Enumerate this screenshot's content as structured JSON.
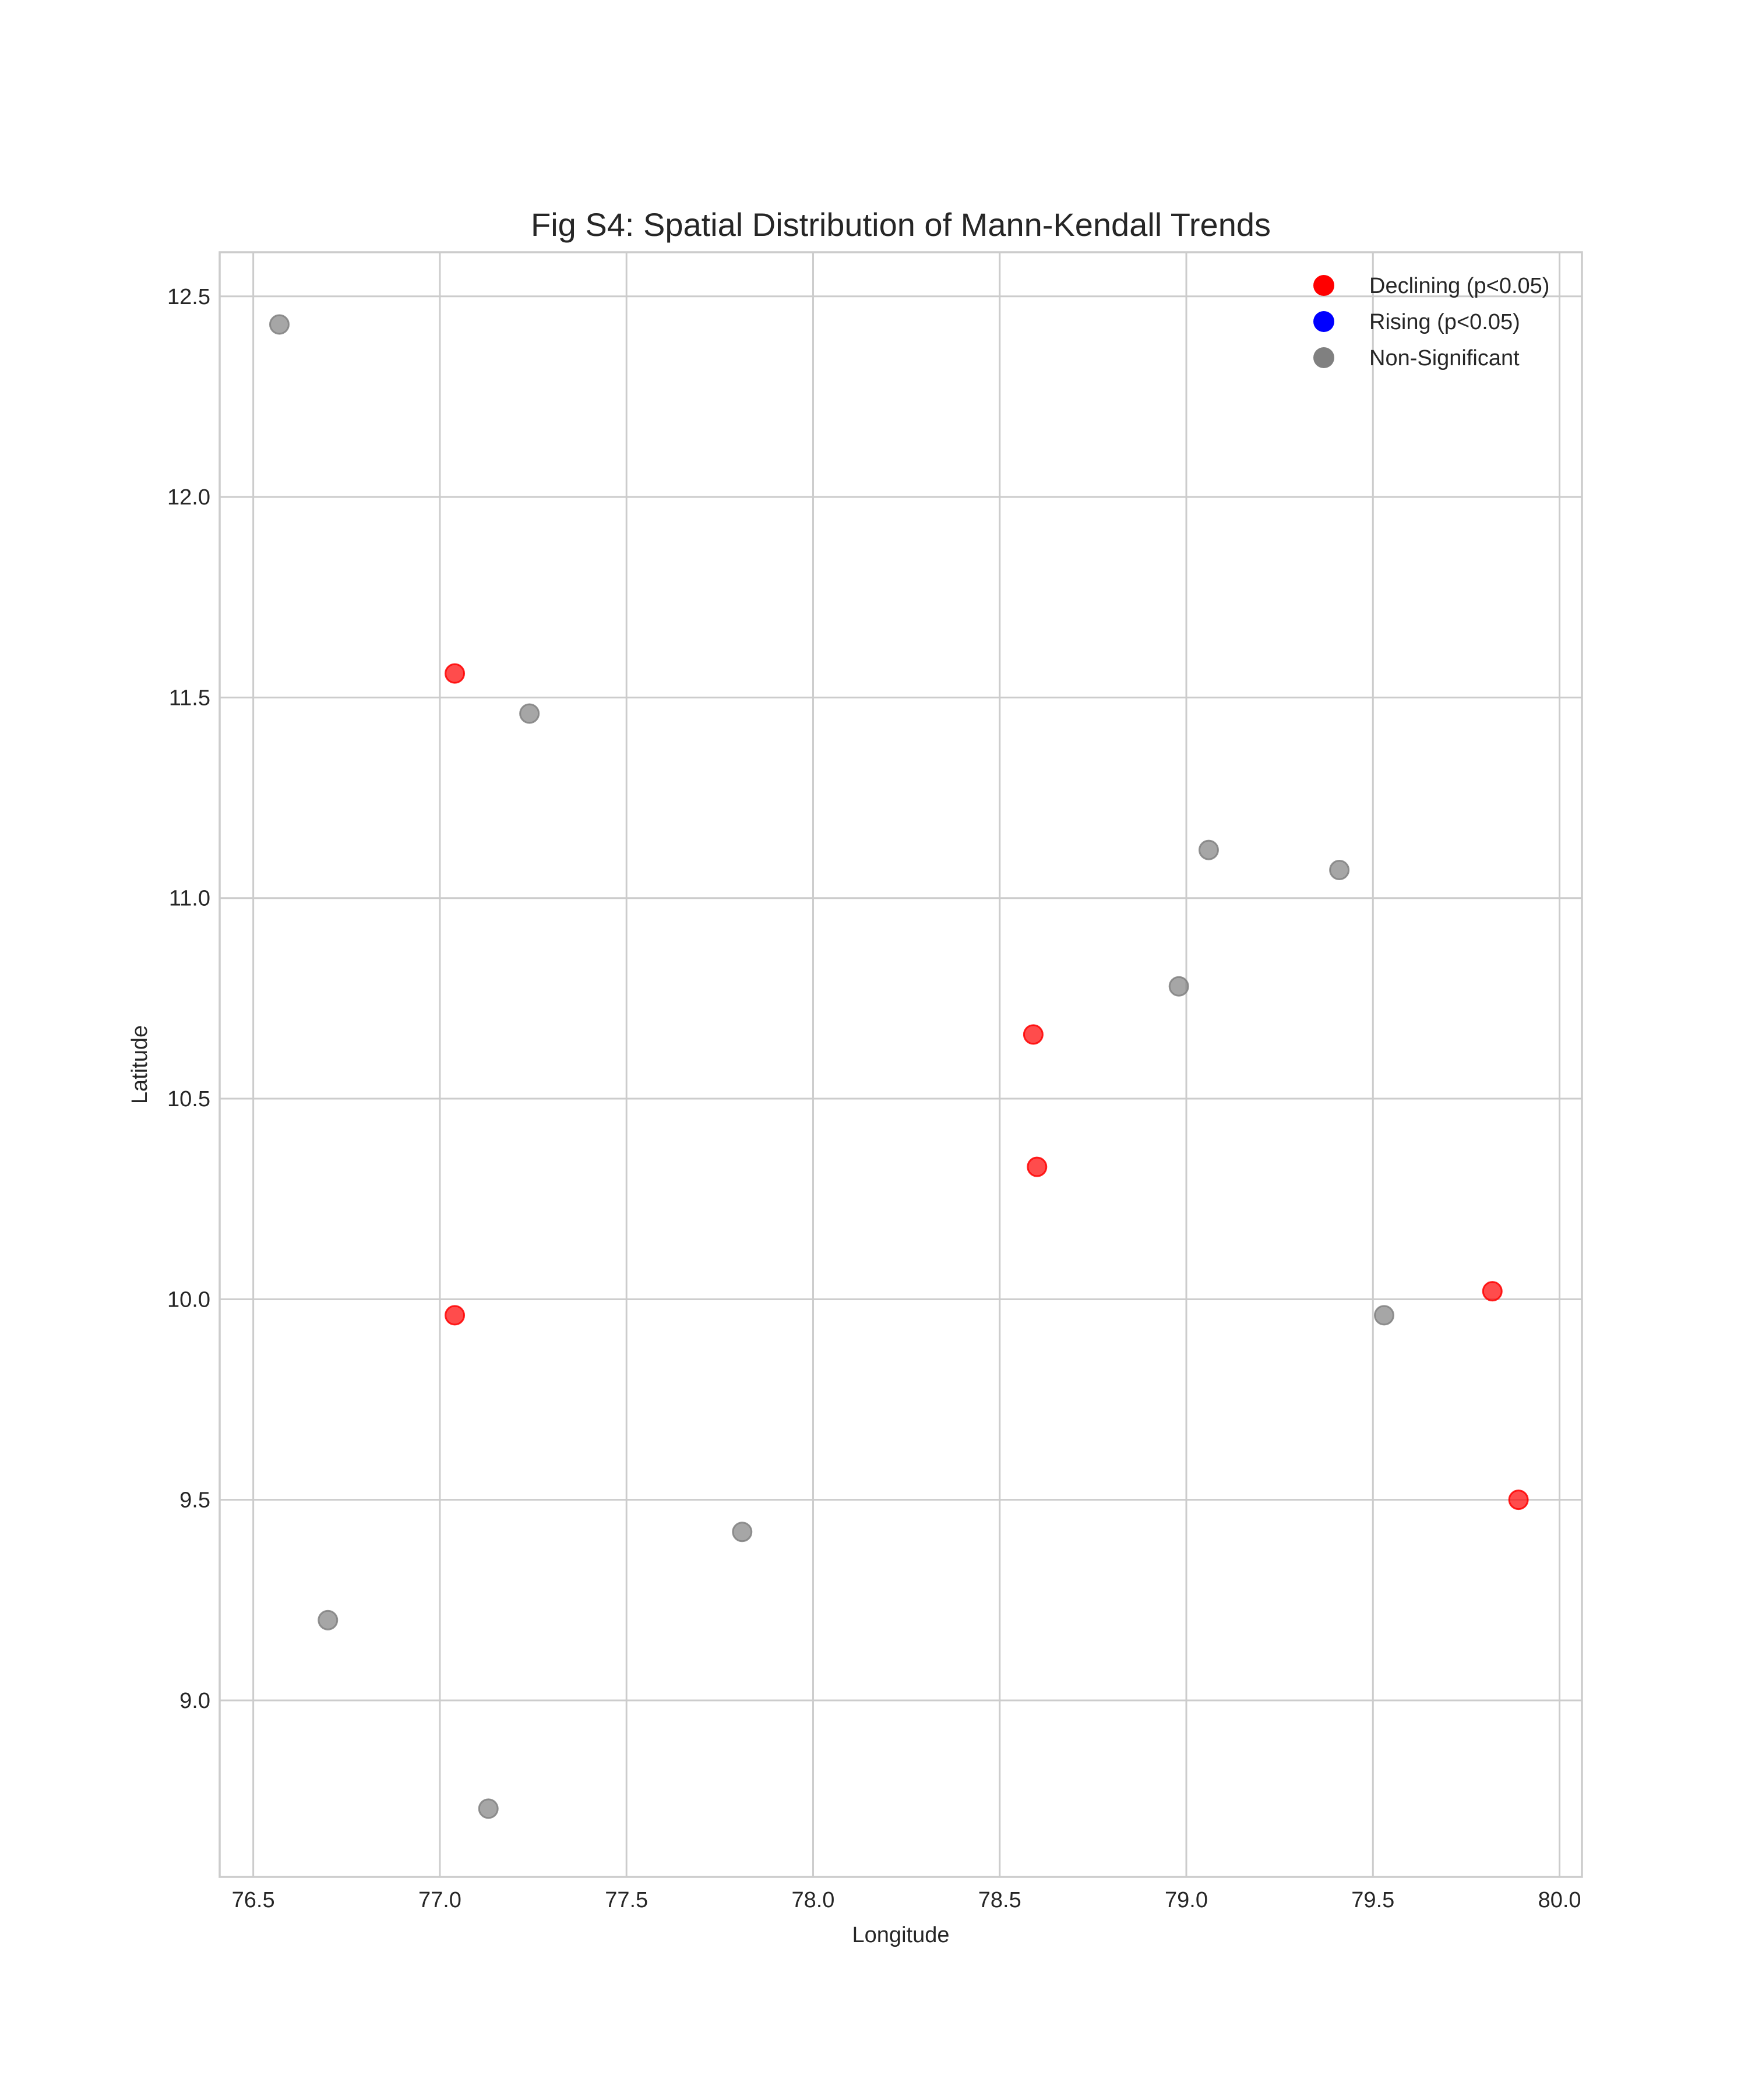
{
  "chart_data": {
    "type": "scatter",
    "title": "Fig S4: Spatial Distribution of Mann-Kendall Trends",
    "xlabel": "Longitude",
    "ylabel": "Latitude",
    "xlim": [
      76.41,
      80.06
    ],
    "ylim": [
      8.56,
      12.61
    ],
    "x_ticks": [
      76.5,
      77.0,
      77.5,
      78.0,
      78.5,
      79.0,
      79.5,
      80.0
    ],
    "x_tick_labels": [
      "76.5",
      "77.0",
      "77.5",
      "78.0",
      "78.5",
      "79.0",
      "79.5",
      "80.0"
    ],
    "y_ticks": [
      9.0,
      9.5,
      10.0,
      10.5,
      11.0,
      11.5,
      12.0,
      12.5
    ],
    "y_tick_labels": [
      "9.0",
      "9.5",
      "10.0",
      "10.5",
      "11.0",
      "11.5",
      "12.0",
      "12.5"
    ],
    "grid": true,
    "legend_position": "top-right",
    "series": [
      {
        "name": "Declining (p<0.05)",
        "color": "#ff0000",
        "points": [
          {
            "x": 77.04,
            "y": 11.56
          },
          {
            "x": 78.59,
            "y": 10.66
          },
          {
            "x": 78.6,
            "y": 10.33
          },
          {
            "x": 77.04,
            "y": 9.96
          },
          {
            "x": 79.82,
            "y": 10.02
          },
          {
            "x": 79.89,
            "y": 9.5
          }
        ]
      },
      {
        "name": "Rising (p<0.05)",
        "color": "#0000ff",
        "points": []
      },
      {
        "name": "Non-Significant",
        "color": "#808080",
        "points": [
          {
            "x": 76.57,
            "y": 12.43
          },
          {
            "x": 77.24,
            "y": 11.46
          },
          {
            "x": 79.06,
            "y": 11.12
          },
          {
            "x": 79.41,
            "y": 11.07
          },
          {
            "x": 78.98,
            "y": 10.78
          },
          {
            "x": 79.53,
            "y": 9.96
          },
          {
            "x": 77.81,
            "y": 9.42
          },
          {
            "x": 76.7,
            "y": 9.2
          },
          {
            "x": 77.13,
            "y": 8.73
          }
        ]
      }
    ]
  }
}
